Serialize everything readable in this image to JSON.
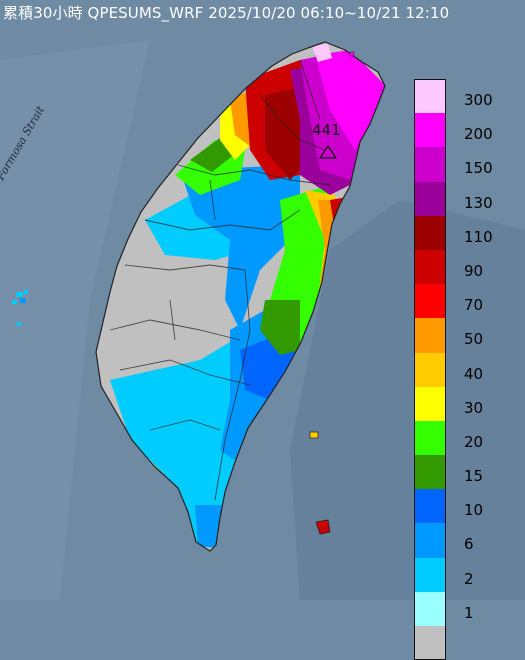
{
  "title": "累積30小時 QPESUMS_WRF 2025/10/20 06:10~10/21 12:10",
  "strait_label": "Formosa Strait",
  "max_label": "441",
  "legend": [
    {
      "value": "300",
      "color": "#fdc8fd"
    },
    {
      "value": "200",
      "color": "#ff00ff"
    },
    {
      "value": "150",
      "color": "#cc00cc"
    },
    {
      "value": "130",
      "color": "#9a009a"
    },
    {
      "value": "110",
      "color": "#9c0000"
    },
    {
      "value": "90",
      "color": "#cc0000"
    },
    {
      "value": "70",
      "color": "#ff0000"
    },
    {
      "value": "50",
      "color": "#ff9900"
    },
    {
      "value": "40",
      "color": "#ffcc00"
    },
    {
      "value": "30",
      "color": "#ffff00"
    },
    {
      "value": "20",
      "color": "#33ff00"
    },
    {
      "value": "15",
      "color": "#339900"
    },
    {
      "value": "10",
      "color": "#0066ff"
    },
    {
      "value": "6",
      "color": "#0099ff"
    },
    {
      "value": "2",
      "color": "#00ccff"
    },
    {
      "value": "1",
      "color": "#99ffff"
    },
    {
      "value": "",
      "color": "#c0c0c0"
    }
  ],
  "colors": {
    "sea": "#6f8aa3",
    "land_no_rain": "#c0c0c0"
  }
}
